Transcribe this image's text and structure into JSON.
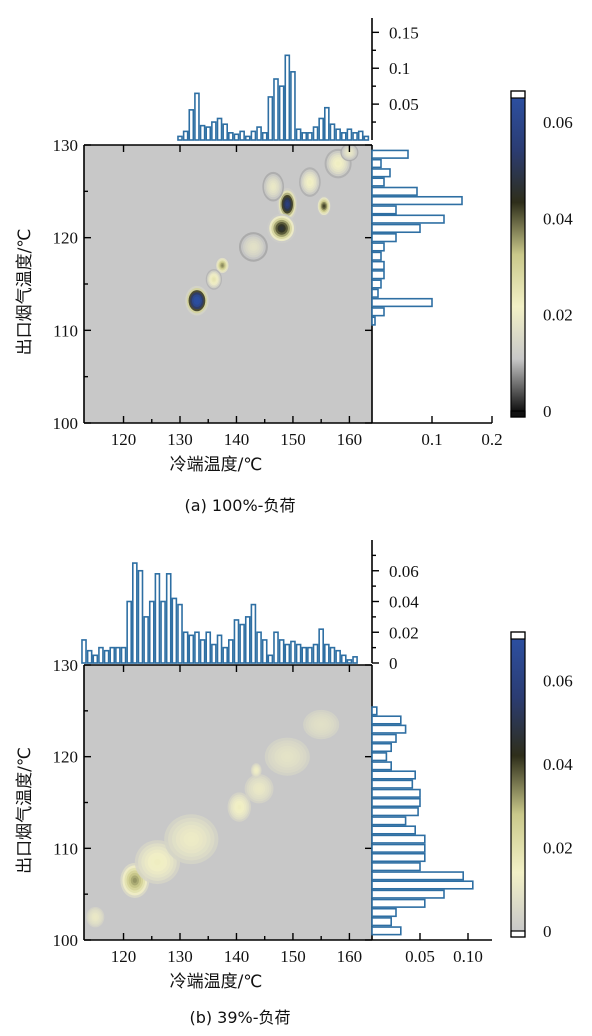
{
  "chart_data": [
    {
      "type": "heatmap",
      "caption": "(a) 100%-负荷",
      "xlabel": "冷端温度/℃",
      "ylabel": "出口烟气温度/℃",
      "xlim": [
        113,
        164
      ],
      "ylim": [
        100,
        130
      ],
      "xticks": [
        120,
        130,
        140,
        150,
        160
      ],
      "yticks": [
        100,
        110,
        120,
        130
      ],
      "colorbar": {
        "range": [
          0,
          0.065
        ],
        "ticks": [
          0,
          0.02,
          0.04,
          0.06
        ],
        "colors": [
          "#111111",
          "#c8c8c8",
          "#f2f0c6",
          "#c9c88a",
          "#2e2e1a",
          "#2b3c72",
          "#2c4fa0"
        ]
      },
      "density_blobs": [
        {
          "x": 133,
          "y": 113.2,
          "sx": 1.3,
          "sy": 1.0,
          "peak": 0.065
        },
        {
          "x": 137.5,
          "y": 117,
          "sx": 0.8,
          "sy": 0.6,
          "peak": 0.03
        },
        {
          "x": 136,
          "y": 115.5,
          "sx": 0.9,
          "sy": 0.7,
          "peak": 0.018
        },
        {
          "x": 149,
          "y": 123.6,
          "sx": 1.1,
          "sy": 1.1,
          "peak": 0.05
        },
        {
          "x": 148,
          "y": 121,
          "sx": 1.6,
          "sy": 1.0,
          "peak": 0.04
        },
        {
          "x": 155.5,
          "y": 123.4,
          "sx": 0.8,
          "sy": 0.7,
          "peak": 0.035
        },
        {
          "x": 143,
          "y": 119,
          "sx": 1.6,
          "sy": 1.0,
          "peak": 0.01
        },
        {
          "x": 153,
          "y": 126,
          "sx": 1.2,
          "sy": 1.0,
          "peak": 0.015
        },
        {
          "x": 158,
          "y": 128,
          "sx": 1.5,
          "sy": 1.0,
          "peak": 0.015
        },
        {
          "x": 160,
          "y": 129.2,
          "sx": 1.0,
          "sy": 0.6,
          "peak": 0.012
        },
        {
          "x": 146.5,
          "y": 125.5,
          "sx": 1.2,
          "sy": 1.0,
          "peak": 0.012
        }
      ],
      "x_marginal": {
        "bins": [
          113,
          114,
          115,
          116,
          117,
          118,
          119,
          120,
          121,
          122,
          123,
          124,
          125,
          126,
          127,
          128,
          129,
          130,
          131,
          132,
          133,
          134,
          135,
          136,
          137,
          138,
          139,
          140,
          141,
          142,
          143,
          144,
          145,
          146,
          147,
          148,
          149,
          150,
          151,
          152,
          153,
          154,
          155,
          156,
          157,
          158,
          159,
          160,
          161,
          162,
          163
        ],
        "values": [
          0,
          0,
          0,
          0,
          0,
          0,
          0,
          0,
          0,
          0,
          0,
          0,
          0,
          0,
          0,
          0,
          0,
          0.005,
          0.012,
          0.042,
          0.065,
          0.02,
          0.018,
          0.025,
          0.03,
          0.022,
          0.01,
          0.008,
          0.012,
          0.005,
          0.012,
          0.018,
          0.01,
          0.06,
          0.085,
          0.075,
          0.118,
          0.095,
          0.015,
          0.01,
          0.01,
          0.018,
          0.03,
          0.045,
          0.022,
          0.015,
          0.01,
          0.015,
          0.01,
          0.012,
          0.005
        ],
        "yticks": [
          0.05,
          0.1,
          0.15
        ],
        "ylim": [
          0,
          0.17
        ]
      },
      "y_marginal": {
        "bins": [
          111,
          112,
          113,
          114,
          115,
          116,
          117,
          118,
          119,
          120,
          121,
          122,
          123,
          124,
          125,
          126,
          127,
          128,
          129
        ],
        "values": [
          0.005,
          0.02,
          0.1,
          0.01,
          0.015,
          0.02,
          0.02,
          0.015,
          0.02,
          0.04,
          0.08,
          0.12,
          0.04,
          0.15,
          0.075,
          0.02,
          0.03,
          0.015,
          0.06
        ],
        "xticks": [
          0.1,
          0.2
        ],
        "xlim": [
          0,
          0.2
        ]
      }
    },
    {
      "type": "heatmap",
      "caption": "(b) 39%-负荷",
      "xlabel": "冷端温度/℃",
      "ylabel": "出口烟气温度/℃",
      "xlim": [
        113,
        164
      ],
      "ylim": [
        100,
        130
      ],
      "xticks": [
        120,
        130,
        140,
        150,
        160
      ],
      "yticks": [
        100,
        110,
        120,
        130
      ],
      "colorbar": {
        "range": [
          0,
          0.07
        ],
        "ticks": [
          0,
          0.02,
          0.04,
          0.06
        ],
        "colors": [
          "#c8c8c8",
          "#f2f0c6",
          "#c9c88a",
          "#2e2e1a",
          "#2b3c72",
          "#2c4fa0"
        ]
      },
      "density_blobs": [
        {
          "x": 122,
          "y": 106.5,
          "sx": 1.6,
          "sy": 1.2,
          "peak": 0.03
        },
        {
          "x": 126,
          "y": 108.5,
          "sx": 2.5,
          "sy": 1.5,
          "peak": 0.012
        },
        {
          "x": 132,
          "y": 111,
          "sx": 3.0,
          "sy": 1.7,
          "peak": 0.009
        },
        {
          "x": 140.5,
          "y": 114.5,
          "sx": 1.3,
          "sy": 1.0,
          "peak": 0.012
        },
        {
          "x": 144,
          "y": 116.5,
          "sx": 1.6,
          "sy": 1.0,
          "peak": 0.008
        },
        {
          "x": 149,
          "y": 120,
          "sx": 2.5,
          "sy": 1.3,
          "peak": 0.006
        },
        {
          "x": 155,
          "y": 123.5,
          "sx": 2.0,
          "sy": 1.0,
          "peak": 0.005
        },
        {
          "x": 115,
          "y": 102.5,
          "sx": 1.0,
          "sy": 0.7,
          "peak": 0.008
        },
        {
          "x": 143.5,
          "y": 118.5,
          "sx": 0.6,
          "sy": 0.5,
          "peak": 0.01
        }
      ],
      "x_marginal": {
        "bins": [
          113,
          114,
          115,
          116,
          117,
          118,
          119,
          120,
          121,
          122,
          123,
          124,
          125,
          126,
          127,
          128,
          129,
          130,
          131,
          132,
          133,
          134,
          135,
          136,
          137,
          138,
          139,
          140,
          141,
          142,
          143,
          144,
          145,
          146,
          147,
          148,
          149,
          150,
          151,
          152,
          153,
          154,
          155,
          156,
          157,
          158,
          159,
          160,
          161
        ],
        "values": [
          0.015,
          0.008,
          0.005,
          0.01,
          0.008,
          0.01,
          0.01,
          0.01,
          0.04,
          0.065,
          0.06,
          0.03,
          0.04,
          0.058,
          0.04,
          0.058,
          0.042,
          0.038,
          0.02,
          0.018,
          0.02,
          0.015,
          0.02,
          0.012,
          0.018,
          0.01,
          0.015,
          0.028,
          0.025,
          0.03,
          0.038,
          0.02,
          0.015,
          0.005,
          0.02,
          0.015,
          0.012,
          0.014,
          0.012,
          0.01,
          0.01,
          0.012,
          0.022,
          0.012,
          0.01,
          0.008,
          0.005,
          0.002,
          0.004
        ],
        "yticks": [
          0,
          0.02,
          0.04,
          0.06
        ],
        "ylim": [
          0,
          0.08
        ]
      },
      "y_marginal": {
        "bins": [
          101,
          102,
          103,
          104,
          105,
          106,
          107,
          108,
          109,
          110,
          111,
          112,
          113,
          114,
          115,
          116,
          117,
          118,
          119,
          120,
          121,
          122,
          123,
          124,
          125
        ],
        "values": [
          0.03,
          0.02,
          0.025,
          0.055,
          0.075,
          0.105,
          0.095,
          0.05,
          0.055,
          0.055,
          0.055,
          0.045,
          0.035,
          0.048,
          0.05,
          0.05,
          0.042,
          0.045,
          0.02,
          0.015,
          0.02,
          0.025,
          0.035,
          0.03,
          0.005
        ],
        "xticks": [
          0.05,
          0.1
        ],
        "xticklabels": [
          "0.05",
          "0.10"
        ],
        "xlim": [
          0,
          0.125
        ]
      }
    }
  ]
}
